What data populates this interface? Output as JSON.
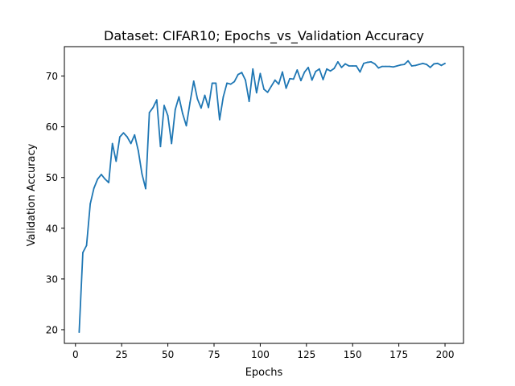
{
  "chart_data": {
    "type": "line",
    "title": "Dataset: CIFAR10; Epochs_vs_Validation Accuracy",
    "xlabel": "Epochs",
    "ylabel": "Validation Accuracy",
    "xlim": [
      -6,
      210
    ],
    "ylim": [
      17.3,
      75.8
    ],
    "xticks": [
      0,
      25,
      50,
      75,
      100,
      125,
      150,
      175,
      200
    ],
    "yticks": [
      20,
      30,
      40,
      50,
      60,
      70
    ],
    "grid": false,
    "series": [
      {
        "color": "#1f77b4",
        "x": [
          2,
          4,
          6,
          8,
          10,
          12,
          14,
          16,
          18,
          20,
          22,
          24,
          26,
          28,
          30,
          32,
          34,
          36,
          38,
          40,
          42,
          44,
          46,
          48,
          50,
          52,
          54,
          56,
          58,
          60,
          62,
          64,
          66,
          68,
          70,
          72,
          74,
          76,
          78,
          80,
          82,
          84,
          86,
          88,
          90,
          92,
          94,
          96,
          98,
          100,
          102,
          104,
          106,
          108,
          110,
          112,
          114,
          116,
          118,
          120,
          122,
          124,
          126,
          128,
          130,
          132,
          134,
          136,
          138,
          140,
          142,
          144,
          146,
          148,
          150,
          152,
          154,
          156,
          158,
          160,
          162,
          164,
          166,
          168,
          170,
          172,
          174,
          176,
          178,
          180,
          182,
          184,
          186,
          188,
          190,
          192,
          194,
          196,
          198,
          200
        ],
        "values": [
          19.5,
          35.2,
          36.6,
          44.8,
          47.9,
          49.7,
          50.6,
          49.7,
          49.0,
          56.7,
          53.2,
          58.0,
          58.8,
          58.0,
          56.7,
          58.4,
          55.3,
          50.7,
          47.8,
          62.8,
          63.8,
          65.3,
          56.1,
          64.2,
          62.2,
          56.7,
          63.4,
          65.9,
          62.6,
          60.2,
          64.8,
          69.0,
          65.5,
          63.7,
          66.2,
          63.8,
          68.6,
          68.6,
          61.4,
          65.9,
          68.6,
          68.4,
          68.9,
          70.3,
          70.7,
          69.2,
          65.0,
          71.4,
          66.7,
          70.5,
          67.4,
          66.8,
          68.0,
          69.2,
          68.4,
          70.8,
          67.6,
          69.5,
          69.4,
          71.2,
          69.1,
          70.8,
          71.7,
          69.2,
          70.9,
          71.4,
          69.3,
          71.4,
          71.0,
          71.5,
          72.8,
          71.7,
          72.4,
          72.0,
          72.0,
          72.0,
          70.8,
          72.5,
          72.7,
          72.8,
          72.4,
          71.6,
          71.9,
          71.9,
          71.9,
          71.8,
          72.0,
          72.2,
          72.3,
          73.0,
          72.0,
          72.1,
          72.3,
          72.5,
          72.3,
          71.7,
          72.4,
          72.5,
          72.1,
          72.5
        ]
      }
    ]
  }
}
